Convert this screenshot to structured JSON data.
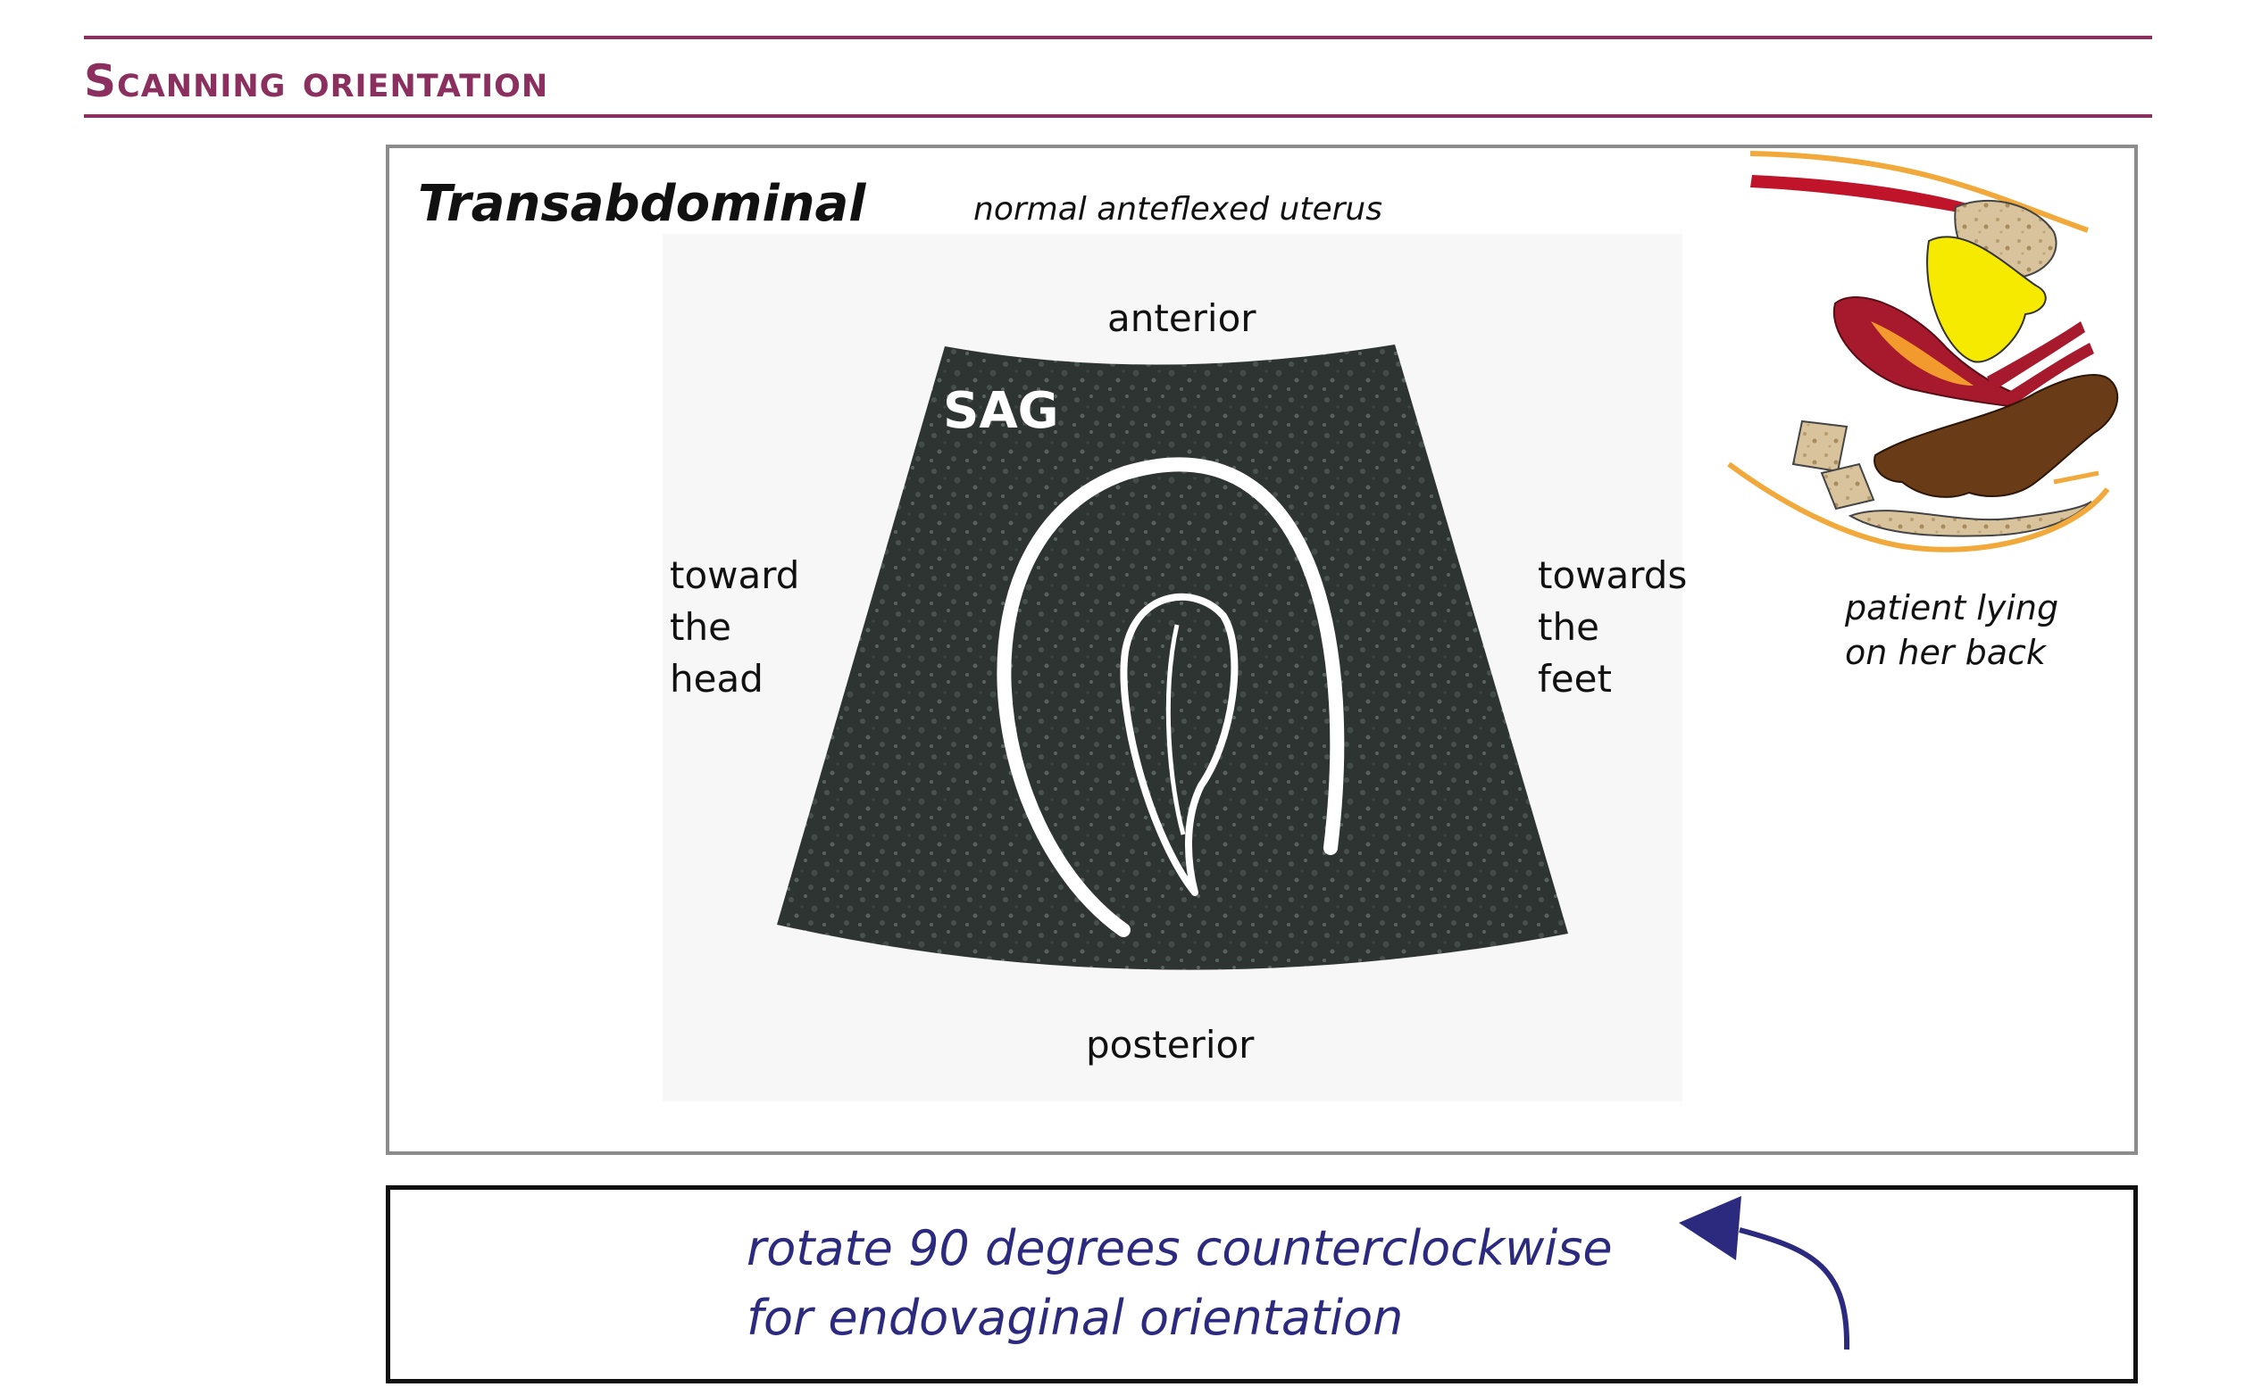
{
  "header": {
    "title": "Scanning orientation"
  },
  "panel": {
    "title": "Transabdominal",
    "subtitle": "normal anteflexed uterus",
    "labels": {
      "anterior": "anterior",
      "posterior": "posterior",
      "left": [
        "toward",
        "the",
        "head"
      ],
      "right": [
        "towards",
        "the",
        "feet"
      ],
      "sag": "SAG"
    },
    "patient_caption": [
      "patient lying",
      "on her back"
    ]
  },
  "instruction": {
    "line1": "rotate 90 degrees counterclockwise",
    "line2": "for endovaginal orientation"
  },
  "colors": {
    "accent": "#8a2f5e",
    "instruction_text": "#2b2a7e",
    "scan_fill": "#2e3432",
    "uterus_outline": "#ffffff"
  },
  "icons": {
    "rotate": "curved-arrow-counterclockwise-icon"
  }
}
